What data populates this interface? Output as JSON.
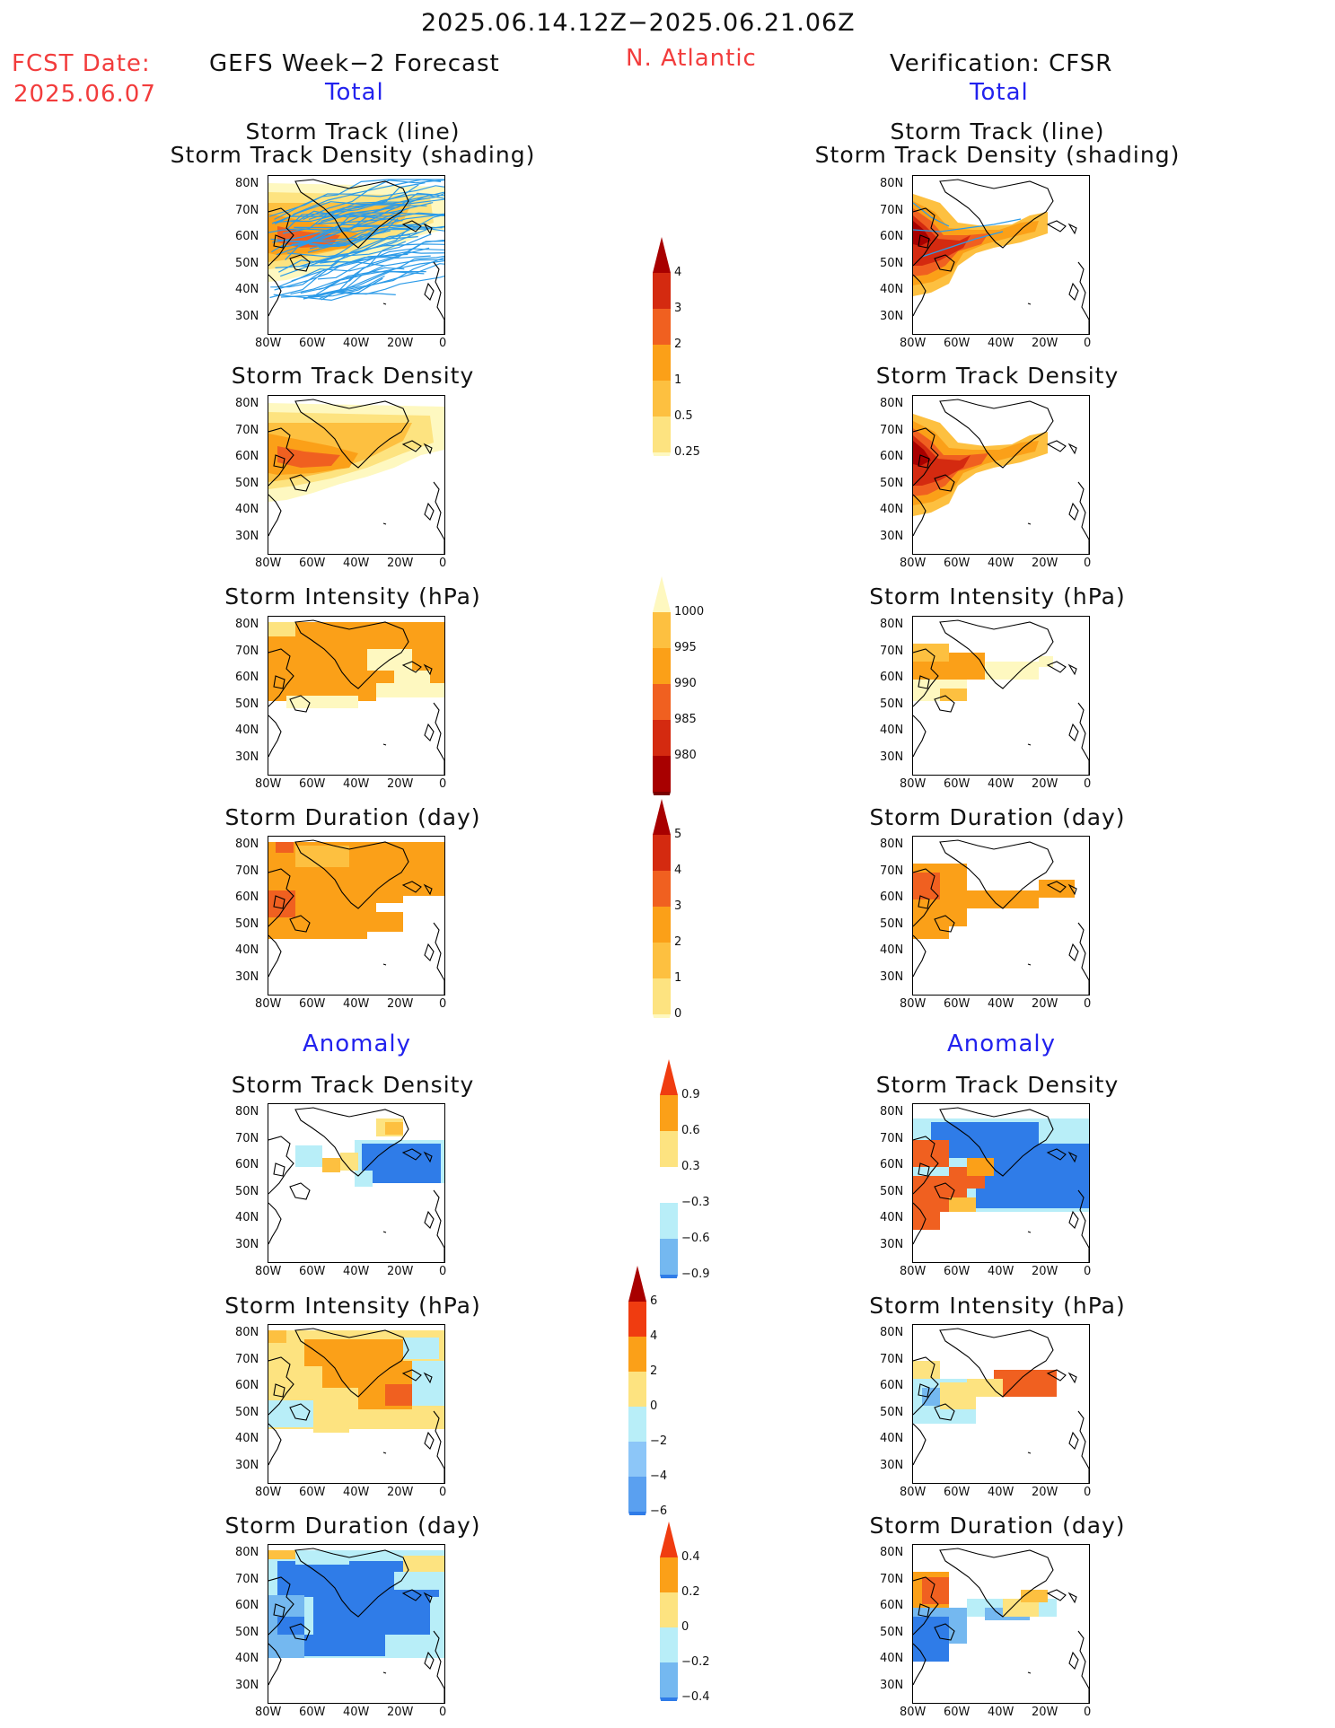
{
  "header": {
    "period": "2025.06.14.12Z−2025.06.21.06Z",
    "fcst_label": "FCST Date:",
    "fcst_date": "2025.06.07",
    "left_title": "GEFS Week−2 Forecast",
    "region": "N. Atlantic",
    "right_title": "Verification: CFSR",
    "total_left": "Total",
    "total_right": "Total",
    "anomaly_left": "Anomaly",
    "anomaly_right": "Anomaly"
  },
  "panel_titles": {
    "track1": "Storm Track (line)",
    "track2": "Storm Track Density (shading)",
    "density": "Storm Track Density",
    "intensity": "Storm Intensity (hPa)",
    "duration": "Storm Duration (day)"
  },
  "axes": {
    "lat_ticks": [
      "80N",
      "70N",
      "60N",
      "50N",
      "40N",
      "30N"
    ],
    "lon_ticks": [
      "80W",
      "60W",
      "40W",
      "20W",
      "0"
    ]
  },
  "colorbars": [
    {
      "id": "density_total",
      "labels": [
        "4",
        "3",
        "2",
        "1",
        "0.5",
        "0.25"
      ],
      "colors": [
        "#a80000",
        "#d42a10",
        "#f06020",
        "#fba018",
        "#fdc040",
        "#fde380",
        "#fef8c0"
      ]
    },
    {
      "id": "intensity_total",
      "labels": [
        "1000",
        "995",
        "990",
        "985",
        "980"
      ],
      "colors": [
        "#fef8c0",
        "#fdc040",
        "#fba018",
        "#f06020",
        "#d42a10",
        "#a80000",
        "#7a0000"
      ]
    },
    {
      "id": "duration_total",
      "labels": [
        "5",
        "4",
        "3",
        "2",
        "1",
        "0"
      ],
      "colors": [
        "#a80000",
        "#d42a10",
        "#f06020",
        "#fba018",
        "#fdc040",
        "#fde380",
        "#fef8c0"
      ]
    },
    {
      "id": "density_anom",
      "labels": [
        "0.9",
        "0.6",
        "0.3",
        "−0.3",
        "−0.6",
        "−0.9"
      ],
      "colors": [
        "#f03c10",
        "#fba018",
        "#fde380",
        "#ffffff",
        "#b8eef8",
        "#74b8f0",
        "#2f7ce8"
      ]
    },
    {
      "id": "intensity_anom",
      "labels": [
        "6",
        "4",
        "2",
        "0",
        "−2",
        "−4",
        "−6"
      ],
      "colors": [
        "#a80000",
        "#f03c10",
        "#fba018",
        "#fde380",
        "#b8eef8",
        "#8cc6f8",
        "#5aa0f0",
        "#2f7ce8"
      ]
    },
    {
      "id": "duration_anom",
      "labels": [
        "0.4",
        "0.2",
        "0",
        "−0.2",
        "−0.4"
      ],
      "colors": [
        "#f03c10",
        "#fba018",
        "#fde380",
        "#b8eef8",
        "#74b8f0",
        "#2f7ce8"
      ]
    }
  ]
}
